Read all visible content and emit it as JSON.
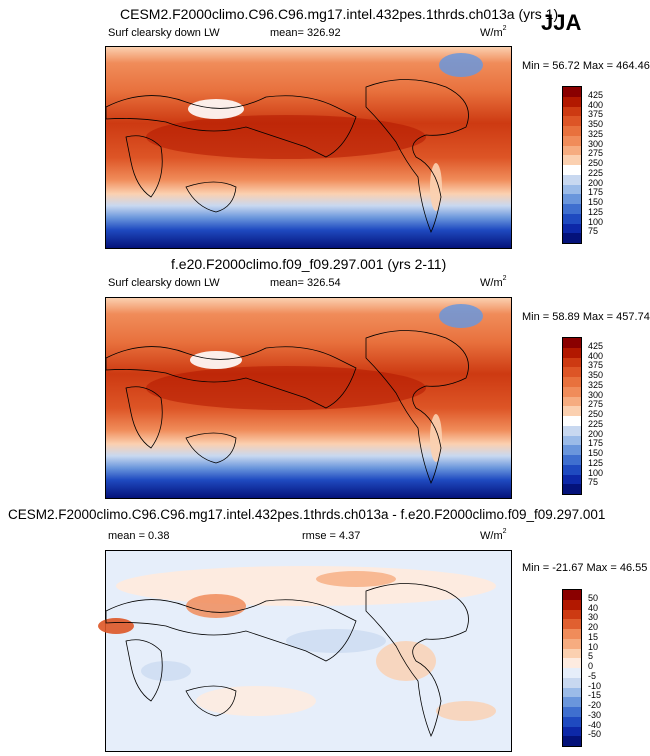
{
  "season": "JJA",
  "panels": [
    {
      "title": "CESM2.F2000climo.C96.C96.mg17.intel.432pes.1thrds.ch013a (yrs 1)",
      "left_label": "Surf clearsky down LW",
      "center_label": "mean= 326.92",
      "units": "W/m",
      "units_exp": "2",
      "minmax": "Min =  56.72 Max = 464.46",
      "colorbar": {
        "levels": [
          "425",
          "400",
          "375",
          "350",
          "325",
          "300",
          "275",
          "250",
          "225",
          "200",
          "175",
          "150",
          "125",
          "100",
          "75"
        ],
        "colors": [
          "#8a0000",
          "#b21800",
          "#cd3a12",
          "#dd5526",
          "#e8713d",
          "#f08c5a",
          "#f6ac80",
          "#fbd0b0",
          "#ffffff",
          "#c8d8f0",
          "#9bbbe8",
          "#6a96dc",
          "#3f6fcf",
          "#1f4ac0",
          "#0d28a8",
          "#04127a"
        ]
      }
    },
    {
      "title": "f.e20.F2000climo.f09_f09.297.001 (yrs 2-11)",
      "left_label": "Surf clearsky down LW",
      "center_label": "mean= 326.54",
      "units": "W/m",
      "units_exp": "2",
      "minmax": "Min =  58.89 Max = 457.74",
      "colorbar": {
        "levels": [
          "425",
          "400",
          "375",
          "350",
          "325",
          "300",
          "275",
          "250",
          "225",
          "200",
          "175",
          "150",
          "125",
          "100",
          "75"
        ],
        "colors": [
          "#8a0000",
          "#b21800",
          "#cd3a12",
          "#dd5526",
          "#e8713d",
          "#f08c5a",
          "#f6ac80",
          "#fbd0b0",
          "#ffffff",
          "#c8d8f0",
          "#9bbbe8",
          "#6a96dc",
          "#3f6fcf",
          "#1f4ac0",
          "#0d28a8",
          "#04127a"
        ]
      }
    },
    {
      "title": "CESM2.F2000climo.C96.C96.mg17.intel.432pes.1thrds.ch013a - f.e20.F2000climo.f09_f09.297.001",
      "left_label": "mean =   0.38",
      "center_label": "rmse =   4.37",
      "units": "W/m",
      "units_exp": "2",
      "minmax": "Min = -21.67 Max =  46.55",
      "colorbar": {
        "levels": [
          "50",
          "40",
          "30",
          "20",
          "15",
          "10",
          "5",
          "0",
          "-5",
          "-10",
          "-15",
          "-20",
          "-30",
          "-40",
          "-50"
        ],
        "colors": [
          "#8a0000",
          "#b21800",
          "#cd3a12",
          "#e06030",
          "#f08c5a",
          "#f6ac80",
          "#fbd0b0",
          "#fdebe0",
          "#e6eefa",
          "#c8d8f0",
          "#9bbbe8",
          "#6a96dc",
          "#3f6fcf",
          "#1f4ac0",
          "#0d28a8",
          "#04127a"
        ]
      }
    }
  ],
  "chart_data": [
    {
      "type": "heatmap",
      "title": "CESM2.F2000climo.C96.C96.mg17.intel.432pes.1thrds.ch013a (yrs 1)",
      "variable": "Surf clearsky down LW",
      "units": "W/m2",
      "mean": 326.92,
      "min": 56.72,
      "max": 464.46,
      "contour_levels": [
        75,
        100,
        125,
        150,
        175,
        200,
        225,
        250,
        275,
        300,
        325,
        350,
        375,
        400,
        425
      ]
    },
    {
      "type": "heatmap",
      "title": "f.e20.F2000climo.f09_f09.297.001 (yrs 2-11)",
      "variable": "Surf clearsky down LW",
      "units": "W/m2",
      "mean": 326.54,
      "min": 58.89,
      "max": 457.74,
      "contour_levels": [
        75,
        100,
        125,
        150,
        175,
        200,
        225,
        250,
        275,
        300,
        325,
        350,
        375,
        400,
        425
      ]
    },
    {
      "type": "heatmap",
      "title": "CESM2.F2000climo.C96.C96.mg17.intel.432pes.1thrds.ch013a - f.e20.F2000climo.f09_f09.297.001",
      "units": "W/m2",
      "mean": 0.38,
      "rmse": 4.37,
      "min": -21.67,
      "max": 46.55,
      "contour_levels": [
        -50,
        -40,
        -30,
        -20,
        -15,
        -10,
        -5,
        0,
        5,
        10,
        15,
        20,
        30,
        40,
        50
      ]
    }
  ]
}
